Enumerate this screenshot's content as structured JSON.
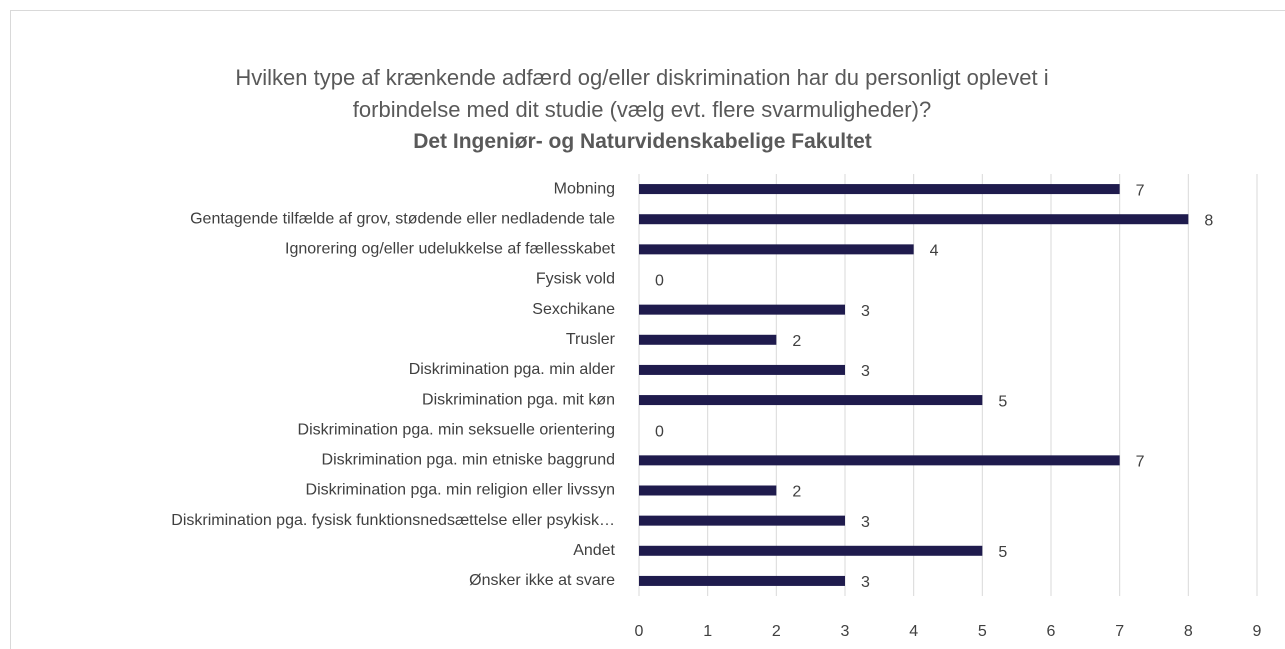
{
  "chart_data": {
    "type": "bar",
    "orientation": "horizontal",
    "title": "Hvilken type af krænkende adfærd og/eller diskrimination har du personligt oplevet i forbindelse med dit studie (vælg evt. flere svarmuligheder)?",
    "subtitle": "Det Ingeniør- og Naturvidenskabelige Fakultet",
    "categories": [
      "Mobning",
      "Gentagende tilfælde af grov, stødende eller nedladende tale",
      "Ignorering og/eller udelukkelse af fællesskabet",
      "Fysisk vold",
      "Sexchikane",
      "Trusler",
      "Diskrimination pga. min alder",
      "Diskrimination pga. mit køn",
      "Diskrimination pga. min seksuelle orientering",
      "Diskrimination pga. min etniske baggrund",
      "Diskrimination pga. min religion eller livssyn",
      "Diskrimination pga. fysisk funktionsnedsættelse eller psykisk…",
      "Andet",
      "Ønsker ikke at svare"
    ],
    "values": [
      7,
      8,
      4,
      0,
      3,
      2,
      3,
      5,
      0,
      7,
      2,
      3,
      5,
      3
    ],
    "color": "#1f1b4d",
    "xlim": [
      0,
      9
    ],
    "xticks": [
      0,
      1,
      2,
      3,
      4,
      5,
      6,
      7,
      8,
      9
    ],
    "grid": true
  }
}
